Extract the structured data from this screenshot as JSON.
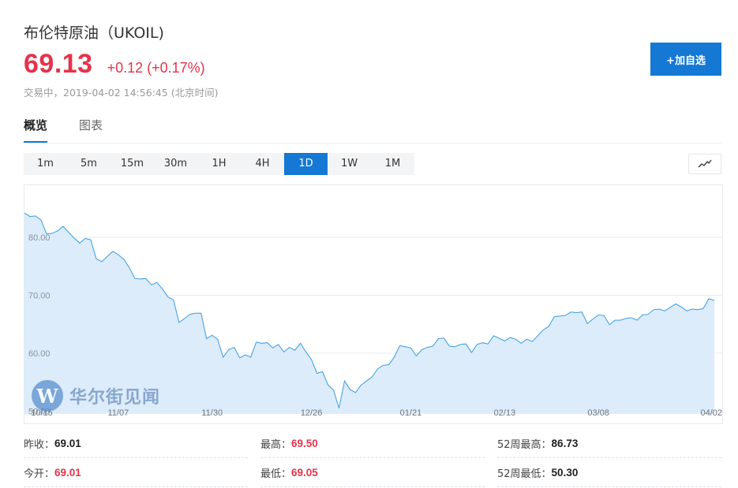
{
  "header": {
    "title": "布伦特原油（UKOIL)",
    "price": "69.13",
    "change": "+0.12 (+0.17%)",
    "status": "交易中，2019-04-02 14:56:45 (北京时间)",
    "add_watchlist_label": "+加自选",
    "price_color": "#e5334a",
    "accent_color": "#1478d4"
  },
  "tabs": [
    {
      "label": "概览",
      "active": true
    },
    {
      "label": "图表",
      "active": false
    }
  ],
  "periods": [
    {
      "label": "1m",
      "active": false
    },
    {
      "label": "5m",
      "active": false
    },
    {
      "label": "15m",
      "active": false
    },
    {
      "label": "30m",
      "active": false
    },
    {
      "label": "1H",
      "active": false
    },
    {
      "label": "4H",
      "active": false
    },
    {
      "label": "1D",
      "active": true
    },
    {
      "label": "1W",
      "active": false
    },
    {
      "label": "1M",
      "active": false
    }
  ],
  "chart_type_icon": "line-chart-icon",
  "watermark": {
    "logo_letter": "W",
    "text": "华尔街见闻"
  },
  "chart_data": {
    "type": "area",
    "ylim": [
      49.5,
      89
    ],
    "ytick_values": [
      50,
      60,
      70,
      80
    ],
    "ytick_labels": [
      "50.00",
      "60.00",
      "70.00",
      "80.00"
    ],
    "xtick_labels": [
      "10/15",
      "11/07",
      "11/30",
      "12/26",
      "01/21",
      "02/13",
      "03/08",
      "04/02"
    ],
    "xtick_indices": [
      0,
      17,
      34,
      52,
      70,
      87,
      104,
      121
    ],
    "grid": true,
    "line_color": "#3a9ce0",
    "fill_color": "#dcecfa",
    "series": [
      {
        "values": [
          84.2,
          83.6,
          83.7,
          83.0,
          80.6,
          80.7,
          81.1,
          81.9,
          80.9,
          79.9,
          79.0,
          79.8,
          79.6,
          76.3,
          75.8,
          76.7,
          77.6,
          77.0,
          76.2,
          74.8,
          72.9,
          72.8,
          72.9,
          71.8,
          72.2,
          71.1,
          69.7,
          69.2,
          65.3,
          66.0,
          66.7,
          66.9,
          66.9,
          62.5,
          63.1,
          62.4,
          59.3,
          60.6,
          61.0,
          59.2,
          59.7,
          59.3,
          61.9,
          61.7,
          61.8,
          60.9,
          61.5,
          60.2,
          61.0,
          60.5,
          61.7,
          60.2,
          58.9,
          56.5,
          56.8,
          54.5,
          53.6,
          50.5,
          55.2,
          53.7,
          53.2,
          54.5,
          55.2,
          55.9,
          57.3,
          57.9,
          58.0,
          59.3,
          61.3,
          61.1,
          60.9,
          59.5,
          60.6,
          61.0,
          61.2,
          62.5,
          62.6,
          61.2,
          61.1,
          61.5,
          61.6,
          60.1,
          61.5,
          61.8,
          61.6,
          63.0,
          62.6,
          62.1,
          62.7,
          62.4,
          61.7,
          62.4,
          62.0,
          63.0,
          64.0,
          64.6,
          66.3,
          66.4,
          66.5,
          67.1,
          67.0,
          67.1,
          65.1,
          65.9,
          66.6,
          66.5,
          64.9,
          65.7,
          65.7,
          66.0,
          66.1,
          65.7,
          66.6,
          66.7,
          67.5,
          67.6,
          67.3,
          67.9,
          68.5,
          68.0,
          67.3,
          67.6,
          67.5,
          67.7,
          69.4,
          69.1
        ]
      }
    ]
  },
  "stats": [
    [
      {
        "label": "昨收：",
        "value": "69.01",
        "tone": "dark"
      },
      {
        "label": "最高：",
        "value": "69.50",
        "tone": "red"
      },
      {
        "label": "52周最高：",
        "value": "86.73",
        "tone": "dark"
      }
    ],
    [
      {
        "label": "今开：",
        "value": "69.01",
        "tone": "red"
      },
      {
        "label": "最低：",
        "value": "69.05",
        "tone": "red"
      },
      {
        "label": "52周最低：",
        "value": "50.30",
        "tone": "dark"
      }
    ]
  ]
}
